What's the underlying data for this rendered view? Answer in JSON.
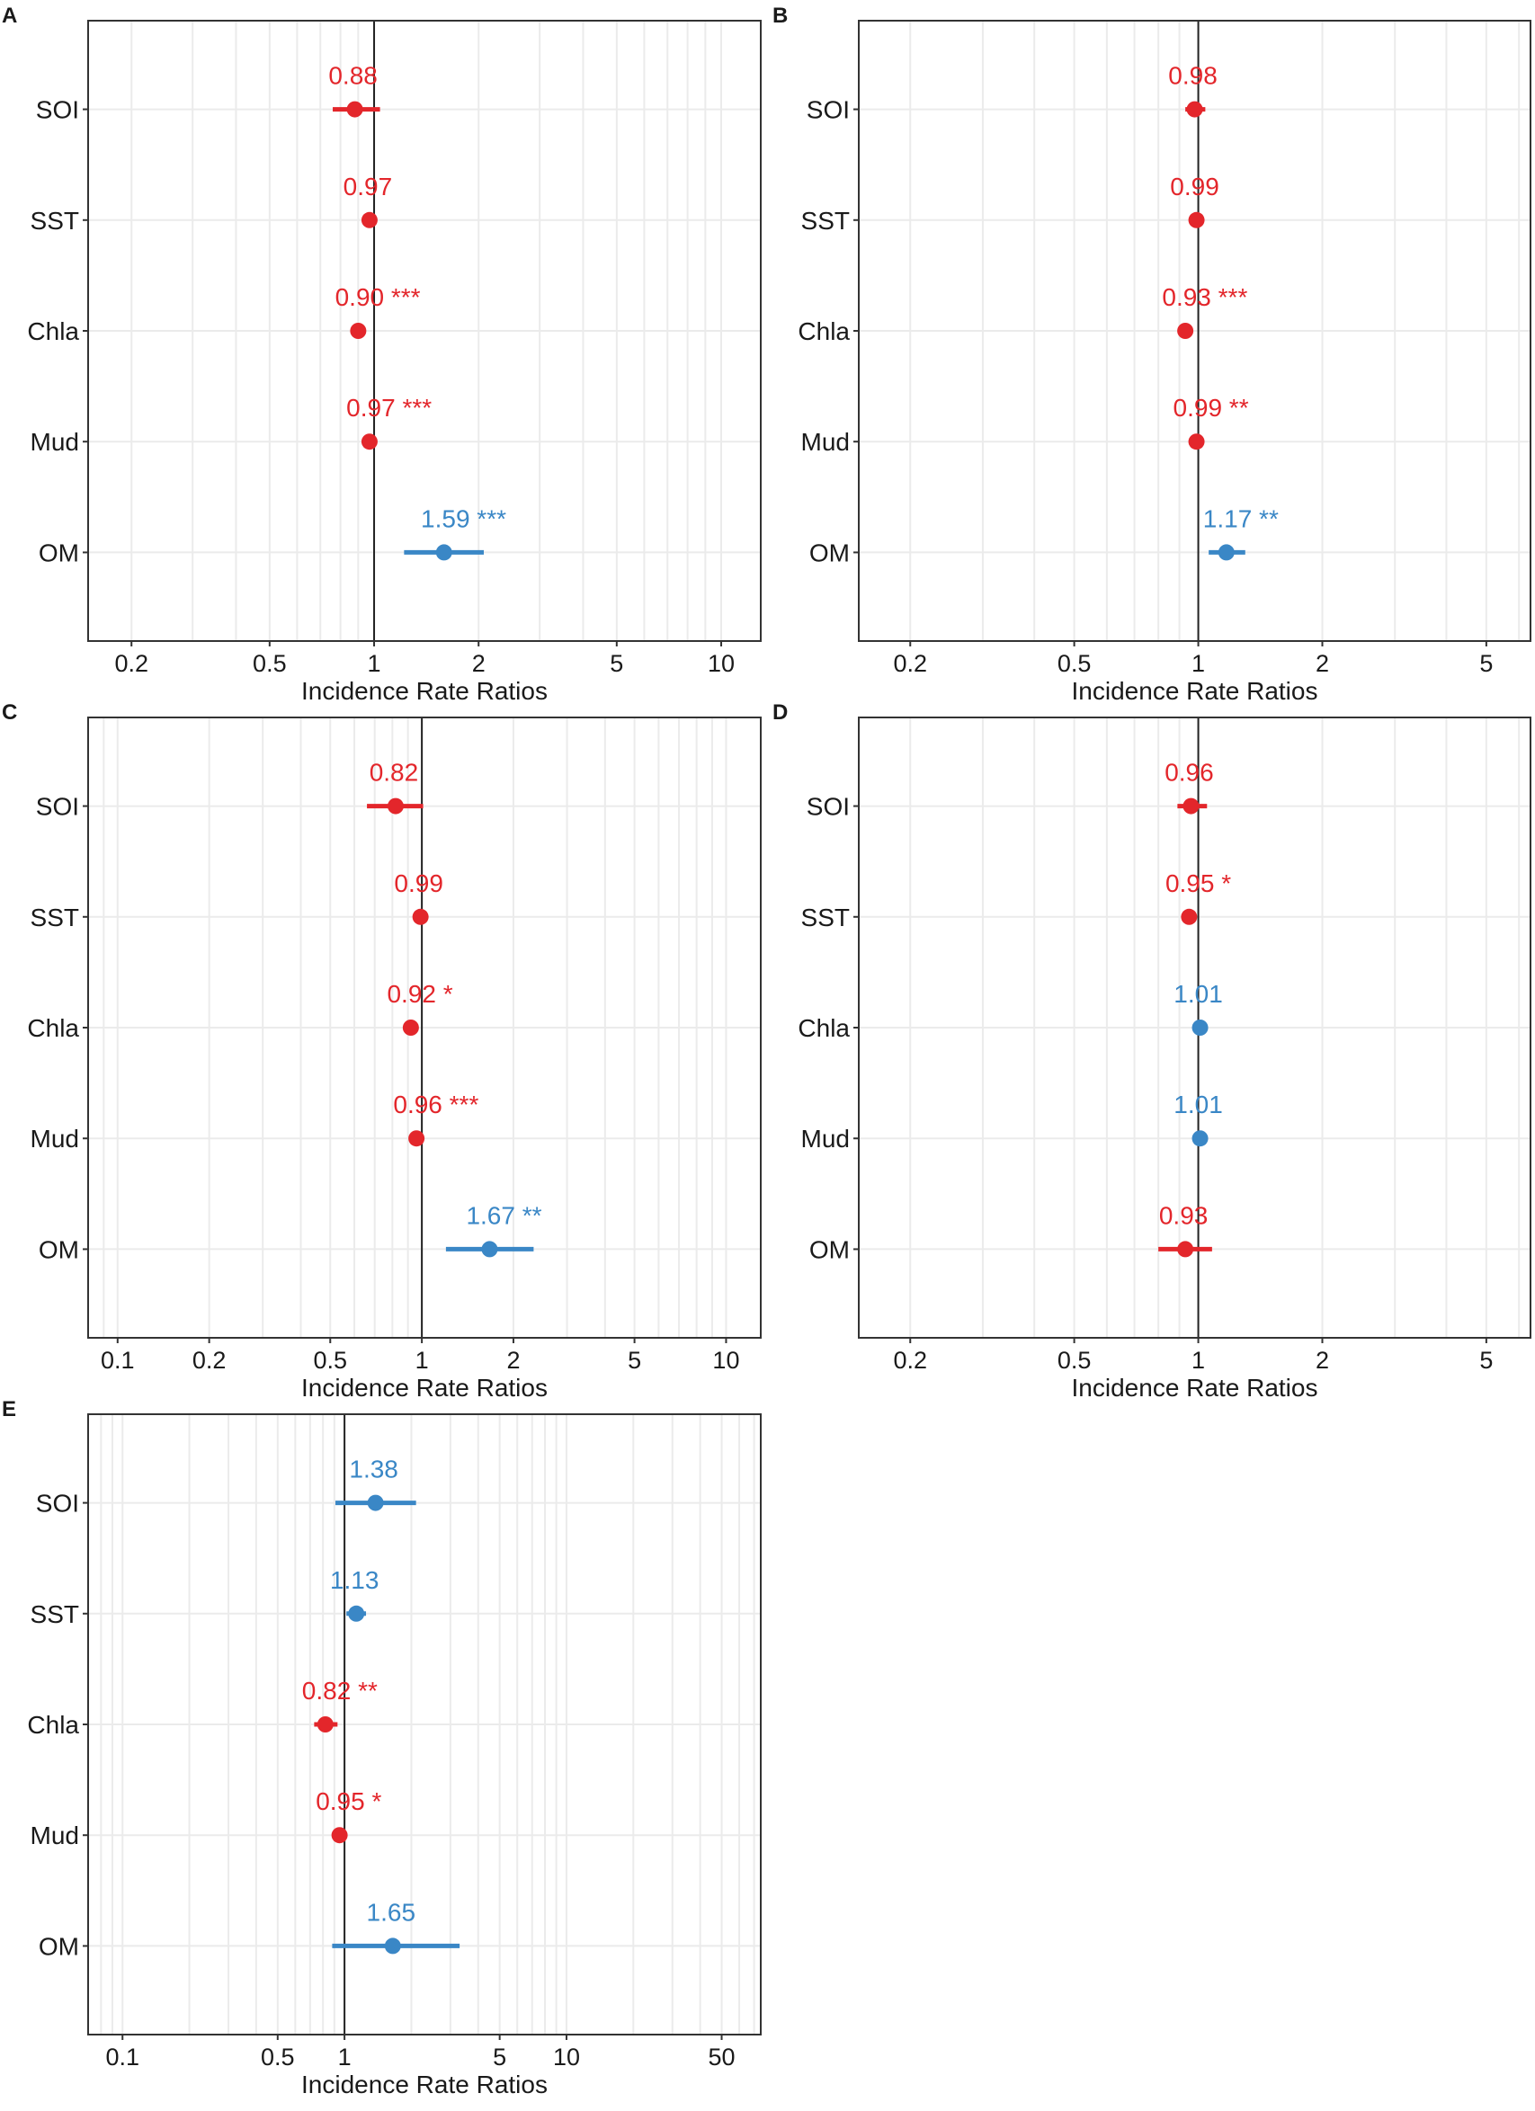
{
  "figure": {
    "xlabel": "Incidence Rate Ratios",
    "colors": {
      "positive": "#3a87c6",
      "negative": "#e3262b",
      "grid": "#ebebeb",
      "axis": "#333333",
      "refline": "#222222",
      "text": "#1a1a1a"
    }
  },
  "chart_data": [
    {
      "type": "forest",
      "panel": "A",
      "xscale": "log",
      "xlim": [
        0.15,
        13
      ],
      "xticks": [
        0.2,
        0.5,
        1,
        2,
        5,
        10
      ],
      "xtick_labels": [
        "0.2",
        "0.5",
        "1",
        "2",
        "5",
        "10"
      ],
      "xlabel": "Incidence Rate Ratios",
      "categories": [
        "SOI",
        "SST",
        "Chla",
        "Mud",
        "OM"
      ],
      "estimates": [
        0.88,
        0.97,
        0.9,
        0.97,
        1.59
      ],
      "ci_low": [
        0.76,
        0.95,
        0.87,
        0.95,
        1.22
      ],
      "ci_high": [
        1.04,
        0.99,
        0.94,
        0.99,
        2.07
      ],
      "labels": [
        "0.88",
        "0.97",
        "0.90 ***",
        "0.97 ***",
        "1.59 ***"
      ],
      "direction": [
        "negative",
        "negative",
        "negative",
        "negative",
        "positive"
      ]
    },
    {
      "type": "forest",
      "panel": "B",
      "xscale": "log",
      "xlim": [
        0.15,
        6.4
      ],
      "xticks": [
        0.2,
        0.5,
        1,
        2,
        5
      ],
      "xtick_labels": [
        "0.2",
        "0.5",
        "1",
        "2",
        "5"
      ],
      "xlabel": "Incidence Rate Ratios",
      "categories": [
        "SOI",
        "SST",
        "Chla",
        "Mud",
        "OM"
      ],
      "estimates": [
        0.98,
        0.99,
        0.93,
        0.99,
        1.17
      ],
      "ci_low": [
        0.93,
        0.98,
        0.91,
        0.98,
        1.06
      ],
      "ci_high": [
        1.04,
        1.0,
        0.95,
        1.0,
        1.3
      ],
      "labels": [
        "0.98",
        "0.99",
        "0.93 ***",
        "0.99 **",
        "1.17 **"
      ],
      "direction": [
        "negative",
        "negative",
        "negative",
        "negative",
        "positive"
      ]
    },
    {
      "type": "forest",
      "panel": "C",
      "xscale": "log",
      "xlim": [
        0.08,
        13
      ],
      "xticks": [
        0.1,
        0.2,
        0.5,
        1,
        2,
        5,
        10
      ],
      "xtick_labels": [
        "0.1",
        "0.2",
        "0.5",
        "1",
        "2",
        "5",
        "10"
      ],
      "xlabel": "Incidence Rate Ratios",
      "categories": [
        "SOI",
        "SST",
        "Chla",
        "Mud",
        "OM"
      ],
      "estimates": [
        0.82,
        0.99,
        0.92,
        0.96,
        1.67
      ],
      "ci_low": [
        0.66,
        0.98,
        0.87,
        0.94,
        1.2
      ],
      "ci_high": [
        1.01,
        1.0,
        0.97,
        0.98,
        2.33
      ],
      "labels": [
        "0.82",
        "0.99",
        "0.92 *",
        "0.96 ***",
        "1.67 **"
      ],
      "direction": [
        "negative",
        "negative",
        "negative",
        "negative",
        "positive"
      ]
    },
    {
      "type": "forest",
      "panel": "D",
      "xscale": "log",
      "xlim": [
        0.15,
        6.4
      ],
      "xticks": [
        0.2,
        0.5,
        1,
        2,
        5
      ],
      "xtick_labels": [
        "0.2",
        "0.5",
        "1",
        "2",
        "5"
      ],
      "xlabel": "Incidence Rate Ratios",
      "categories": [
        "SOI",
        "SST",
        "Chla",
        "Mud",
        "OM"
      ],
      "estimates": [
        0.96,
        0.95,
        1.01,
        1.01,
        0.93
      ],
      "ci_low": [
        0.89,
        0.93,
        0.99,
        0.99,
        0.8
      ],
      "ci_high": [
        1.05,
        0.98,
        1.02,
        1.02,
        1.08
      ],
      "labels": [
        "0.96",
        "0.95 *",
        "1.01",
        "1.01",
        "0.93"
      ],
      "direction": [
        "negative",
        "negative",
        "positive",
        "positive",
        "negative"
      ]
    },
    {
      "type": "forest",
      "panel": "E",
      "xscale": "log",
      "xlim": [
        0.07,
        75
      ],
      "xticks": [
        0.1,
        0.5,
        1,
        5,
        10,
        50
      ],
      "xtick_labels": [
        "0.1",
        "0.5",
        "1",
        "5",
        "10",
        "50"
      ],
      "xlabel": "Incidence Rate Ratios",
      "categories": [
        "SOI",
        "SST",
        "Chla",
        "Mud",
        "OM"
      ],
      "estimates": [
        1.38,
        1.13,
        0.82,
        0.95,
        1.65
      ],
      "ci_low": [
        0.91,
        1.02,
        0.73,
        0.91,
        0.88
      ],
      "ci_high": [
        2.1,
        1.25,
        0.93,
        0.99,
        3.3
      ],
      "labels": [
        "1.38",
        "1.13",
        "0.82 **",
        "0.95 *",
        "1.65"
      ],
      "direction": [
        "positive",
        "positive",
        "negative",
        "negative",
        "positive"
      ]
    }
  ]
}
